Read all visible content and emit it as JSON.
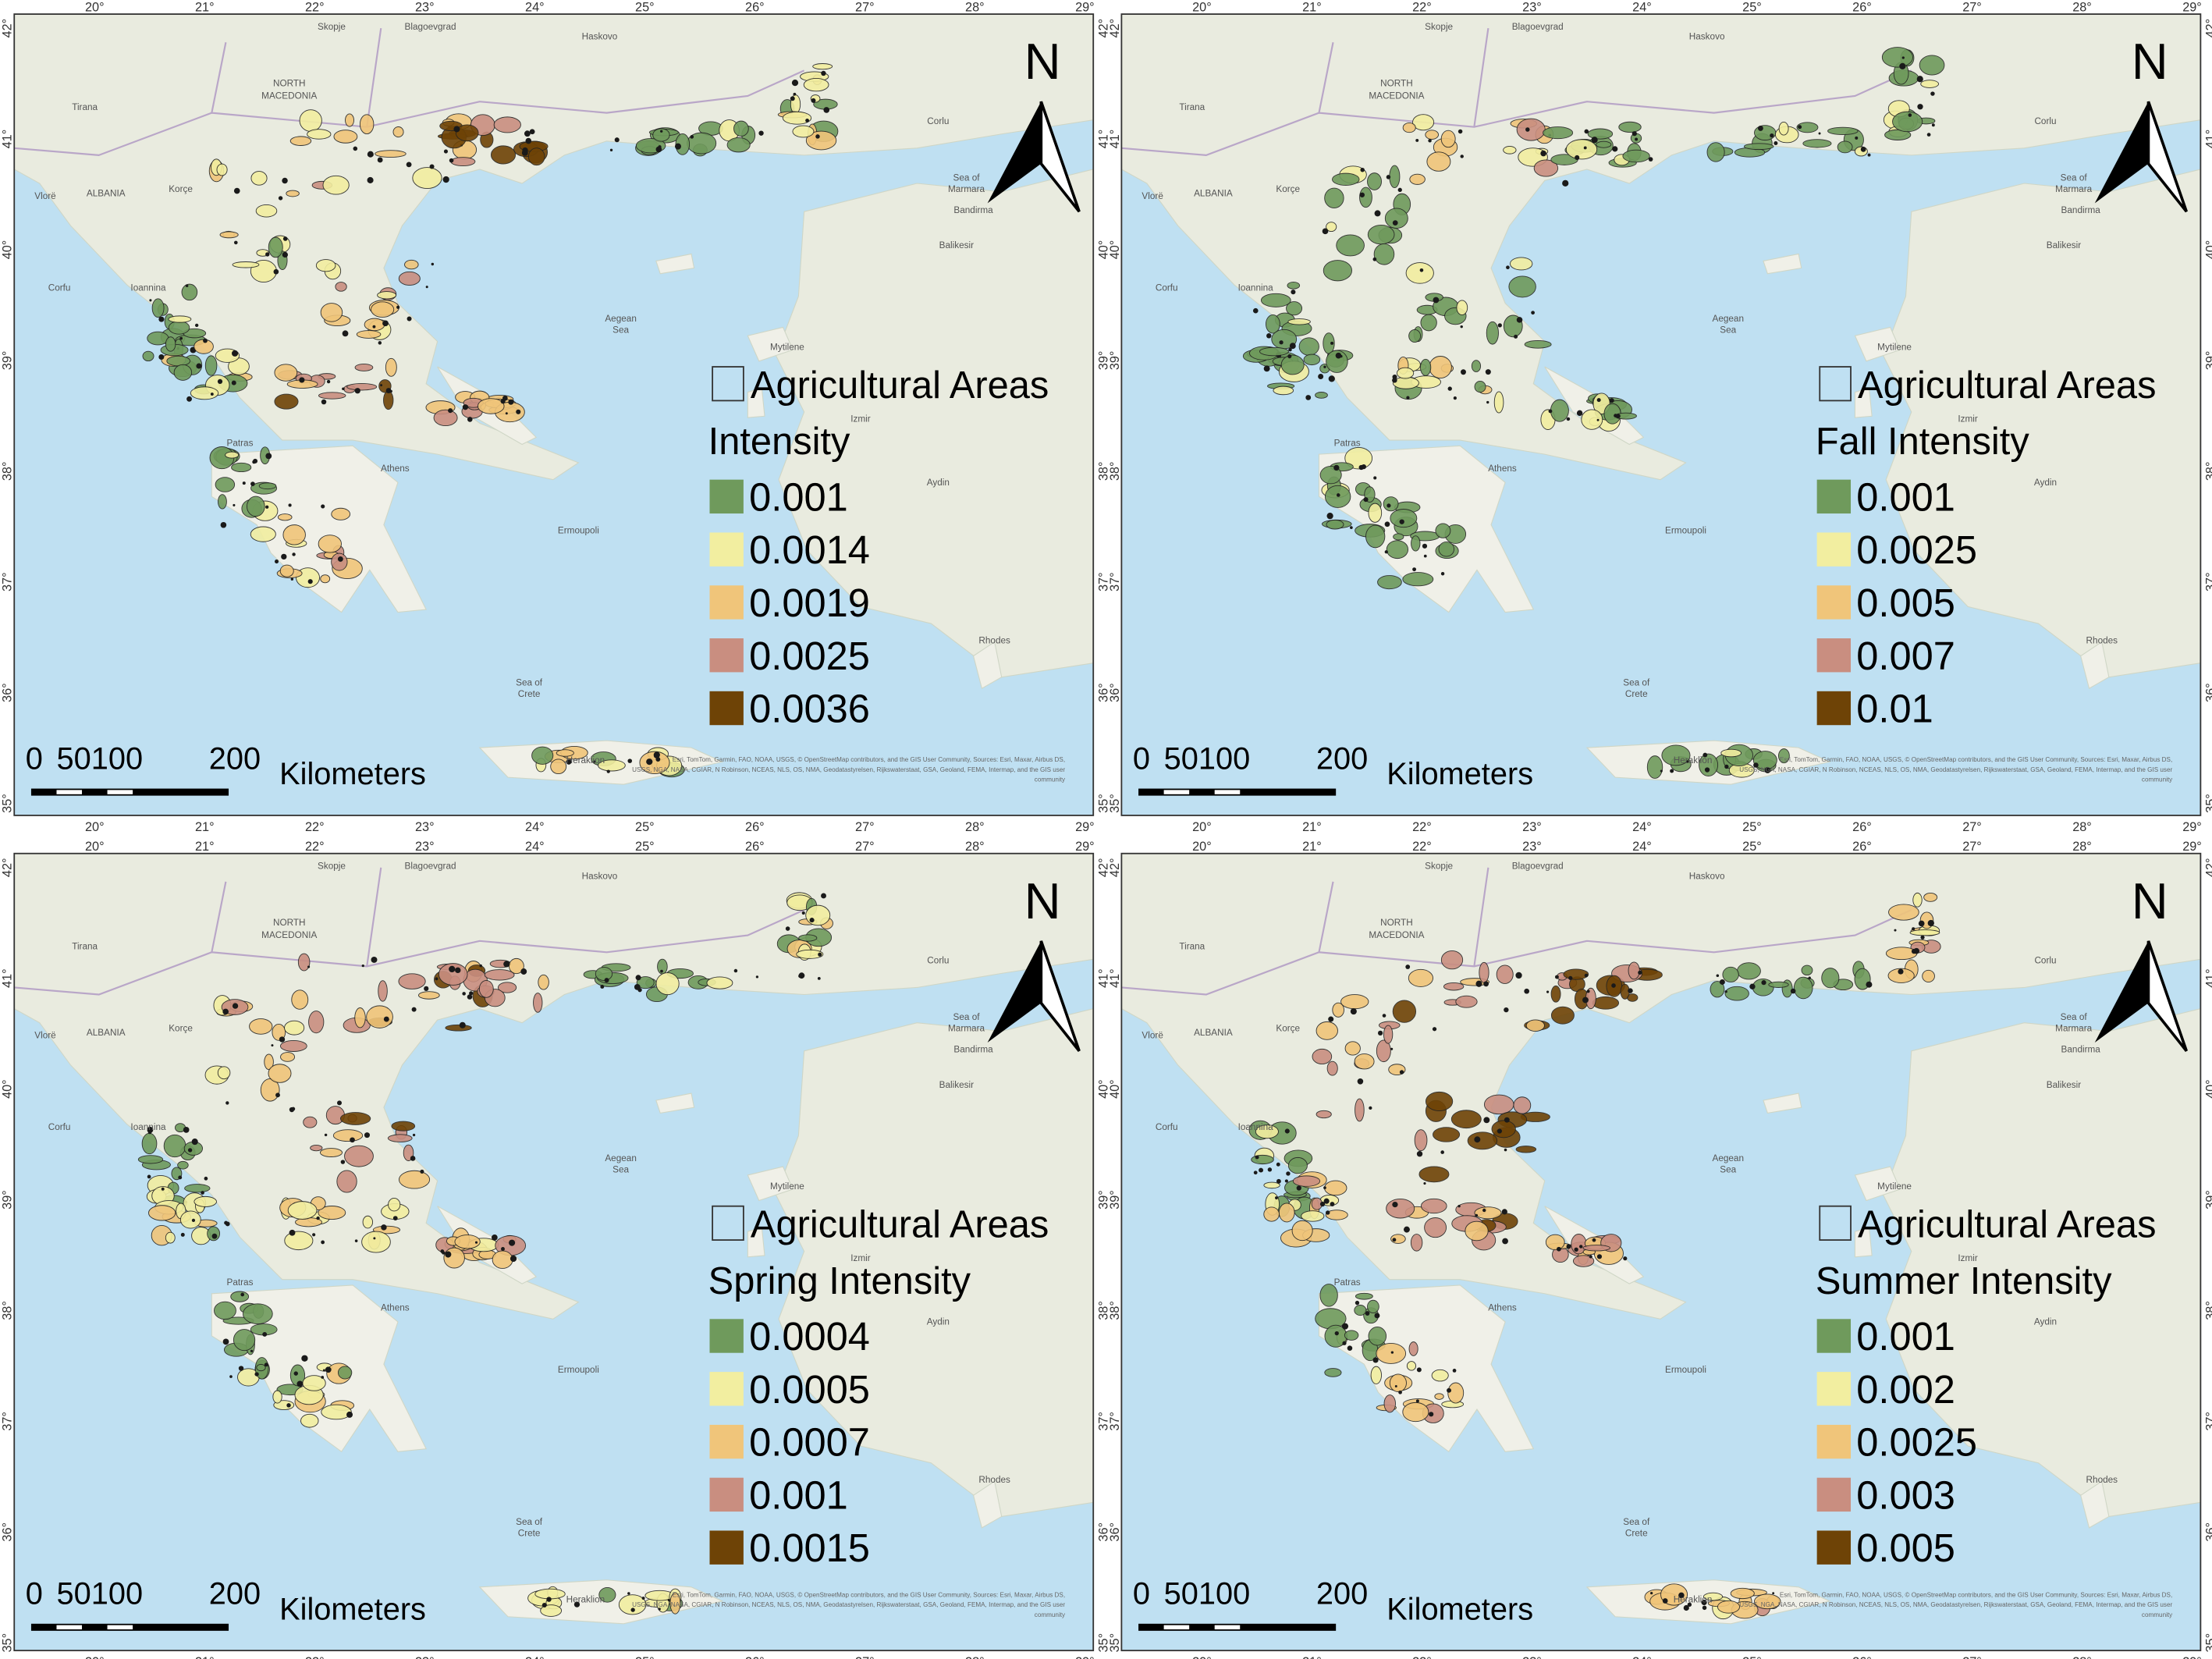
{
  "lon_labels": [
    "20°",
    "21°",
    "22°",
    "23°",
    "24°",
    "25°",
    "26°",
    "27°",
    "28°",
    "29°"
  ],
  "lat_labels": [
    "42°",
    "41°",
    "40°",
    "39°",
    "38°",
    "37°",
    "36°",
    "35°"
  ],
  "place_names": [
    "Skopje",
    "Blagoevgrad",
    "Haskovo",
    "NORTH",
    "MACEDONIA",
    "Tirana",
    "Corlu",
    "ALBANIA",
    "Vlorë",
    "Korçe",
    "Sea of",
    "Marmara",
    "Bandirma",
    "Corfu",
    "Ioannina",
    "Balikesir",
    "Aegean",
    "Sea",
    "Mytilene",
    "Izmir",
    "Patras",
    "Athens",
    "Aydin",
    "Ermoupoli",
    "Rhodes",
    "Sea of",
    "Crete",
    "Heraklion"
  ],
  "attribution": [
    "Esri, TomTom, Garmin, FAO, NOAA, USGS, © OpenStreetMap contributors, and the GIS User Community, Sources: Esri, Maxar, Airbus DS,",
    "USGS, NGA, NASA, CGIAR, N Robinson, NCEAS, NLS, OS, NMA, Geodatastyrelsen, Rijkswaterstaat, GSA, Geoland, FEMA, Intermap, and the GIS user",
    "community"
  ],
  "panels": [
    {
      "legend_layer": "Agricultural Areas",
      "legend_title": "Intensity",
      "north": "N",
      "scale_labels": [
        0,
        50100,
        200
      ],
      "scale_unit": "Kilometers",
      "legend": [
        {
          "label": 0.001,
          "color": "#6f9a5c"
        },
        {
          "label": 0.0014,
          "color": "#f2eea0"
        },
        {
          "label": 0.0019,
          "color": "#f0c57a"
        },
        {
          "label": 0.0025,
          "color": "#c98e80"
        },
        {
          "label": 0.0036,
          "color": "#6e4306"
        }
      ]
    },
    {
      "legend_layer": "Agricultural Areas",
      "legend_title": "Fall Intensity",
      "north": "N",
      "scale_labels": [
        0,
        50100,
        200
      ],
      "scale_unit": "Kilometers",
      "legend": [
        {
          "label": 0.001,
          "color": "#6f9a5c"
        },
        {
          "label": 0.0025,
          "color": "#f2eea0"
        },
        {
          "label": 0.005,
          "color": "#f0c57a"
        },
        {
          "label": 0.007,
          "color": "#c98e80"
        },
        {
          "label": 0.01,
          "color": "#6e4306"
        }
      ]
    },
    {
      "legend_layer": "Agricultural Areas",
      "legend_title": "Spring Intensity",
      "north": "N",
      "scale_labels": [
        0,
        50100,
        200
      ],
      "scale_unit": "Kilometers",
      "legend": [
        {
          "label": 0.0004,
          "color": "#6f9a5c"
        },
        {
          "label": 0.0005,
          "color": "#f2eea0"
        },
        {
          "label": 0.0007,
          "color": "#f0c57a"
        },
        {
          "label": 0.001,
          "color": "#c98e80"
        },
        {
          "label": 0.0015,
          "color": "#6e4306"
        }
      ]
    },
    {
      "legend_layer": "Agricultural Areas",
      "legend_title": "Summer Intensity",
      "north": "N",
      "scale_labels": [
        0,
        50100,
        200
      ],
      "scale_unit": "Kilometers",
      "legend": [
        {
          "label": 0.001,
          "color": "#6f9a5c"
        },
        {
          "label": 0.002,
          "color": "#f2eea0"
        },
        {
          "label": 0.0025,
          "color": "#f0c57a"
        },
        {
          "label": 0.003,
          "color": "#c98e80"
        },
        {
          "label": 0.005,
          "color": "#6e4306"
        }
      ]
    }
  ]
}
